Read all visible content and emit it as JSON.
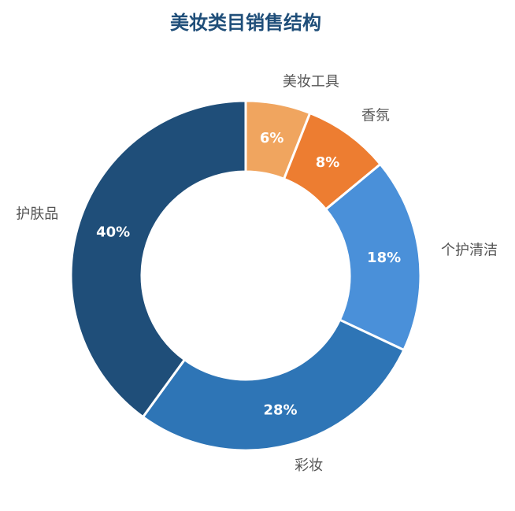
{
  "chart_data": {
    "type": "donut",
    "title": "美妆类目销售结构",
    "categories": [
      "美妆工具",
      "香氛",
      "个护清洁",
      "彩妆",
      "护肤品"
    ],
    "values": [
      6,
      8,
      18,
      28,
      40
    ],
    "value_labels": [
      "6%",
      "8%",
      "18%",
      "28%",
      "40%"
    ],
    "colors": [
      "#f0a55f",
      "#ed7d31",
      "#4a90d9",
      "#2e75b6",
      "#1f4e79"
    ]
  }
}
